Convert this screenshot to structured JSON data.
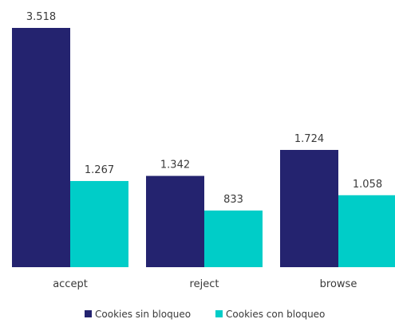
{
  "chart_data": {
    "type": "bar",
    "categories": [
      "accept",
      "reject",
      "browse"
    ],
    "series": [
      {
        "name": "Cookies sin bloqueo",
        "values": [
          3518,
          1342,
          1724
        ],
        "labels": [
          "3.518",
          "1.342",
          "1.724"
        ],
        "color": "#24236f"
      },
      {
        "name": "Cookies con bloqueo",
        "values": [
          1267,
          833,
          1058
        ],
        "labels": [
          "1.267",
          "833",
          "1.058"
        ],
        "color": "#00cdc8"
      }
    ],
    "ylim": [
      0,
      3518
    ],
    "grid": false,
    "legend": "bottom-center"
  }
}
